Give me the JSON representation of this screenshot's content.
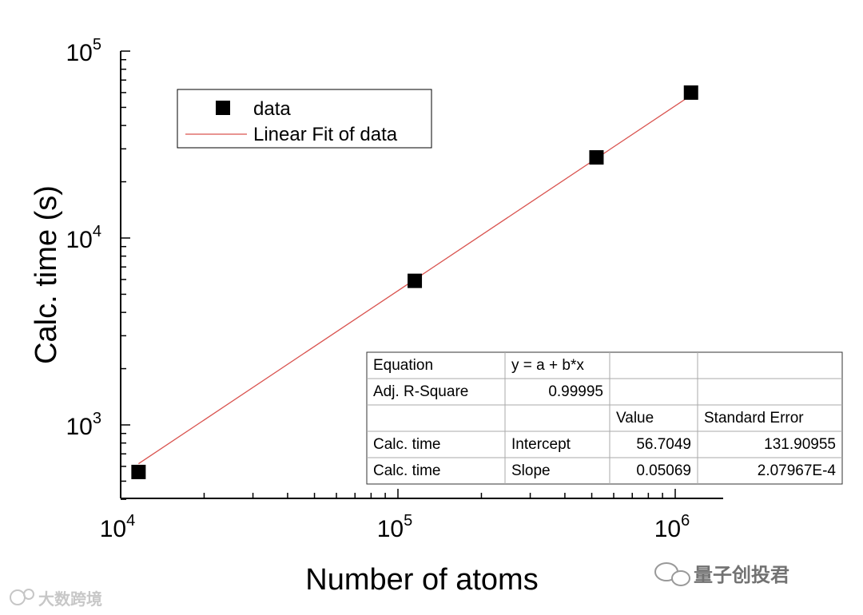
{
  "chart_data": {
    "type": "scatter",
    "xscale": "log",
    "yscale": "log",
    "xlabel": "Number of atoms",
    "ylabel": "Calc. time (s)",
    "xlim": [
      10000,
      1500000
    ],
    "ylim": [
      400,
      100000
    ],
    "x_ticks": [
      {
        "base": "10",
        "exp": "4",
        "value": 10000
      },
      {
        "base": "10",
        "exp": "5",
        "value": 100000
      },
      {
        "base": "10",
        "exp": "6",
        "value": 1000000
      }
    ],
    "y_ticks": [
      {
        "base": "10",
        "exp": "3",
        "value": 1000
      },
      {
        "base": "10",
        "exp": "4",
        "value": 10000
      },
      {
        "base": "10",
        "exp": "5",
        "value": 100000
      }
    ],
    "grid": false,
    "legend_position": "top-left",
    "series": [
      {
        "name": "data",
        "kind": "scatter",
        "marker": "square",
        "color": "#000000",
        "points": [
          {
            "x": 11600,
            "y": 560
          },
          {
            "x": 115000,
            "y": 5900
          },
          {
            "x": 520000,
            "y": 27000
          },
          {
            "x": 1140000,
            "y": 60000
          }
        ]
      },
      {
        "name": "Linear Fit of data",
        "kind": "line",
        "color": "#d9534f",
        "points": [
          {
            "x": 11600,
            "y": 620
          },
          {
            "x": 1140000,
            "y": 58000
          }
        ]
      }
    ],
    "fit_table": {
      "rows": [
        [
          "Equation",
          "y = a + b*x",
          "",
          ""
        ],
        [
          "Adj. R-Square",
          "0.99995",
          "",
          ""
        ],
        [
          "",
          "",
          "Value",
          "Standard Error"
        ],
        [
          "Calc. time",
          "Intercept",
          "56.7049",
          "131.90955"
        ],
        [
          "Calc. time",
          "Slope",
          "0.05069",
          "2.07967E-4"
        ]
      ]
    }
  },
  "watermarks": {
    "left": "大数跨境",
    "right": "量子创投君"
  }
}
